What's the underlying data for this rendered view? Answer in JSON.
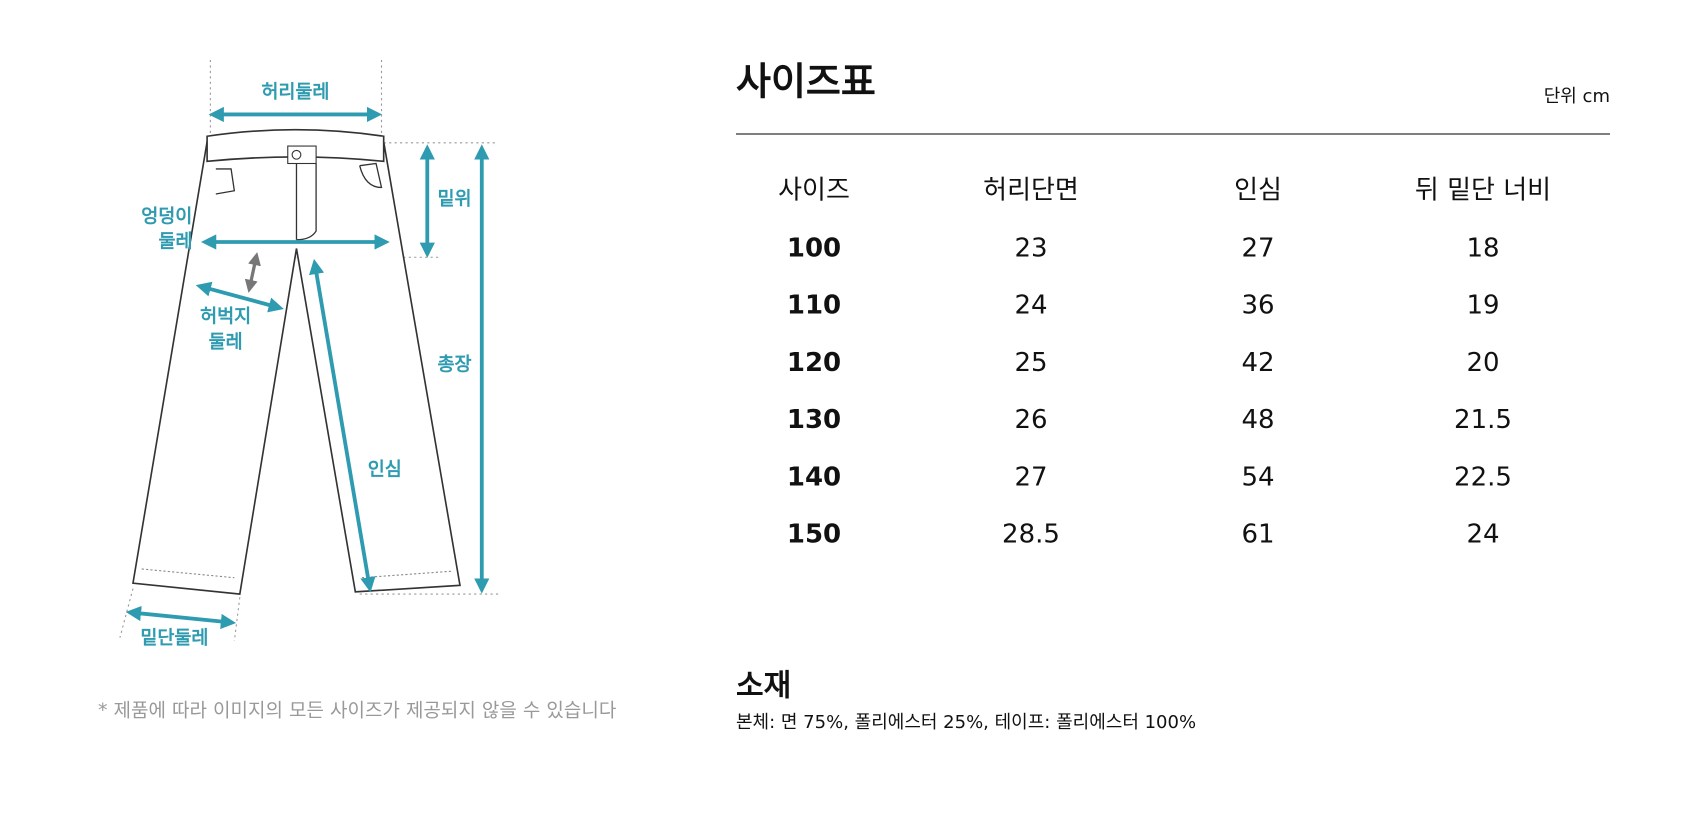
{
  "diagram": {
    "labels": {
      "waist": "허리둘레",
      "rise": "밑위",
      "hip": [
        "엉덩이",
        "둘레"
      ],
      "thigh": [
        "허벅지",
        "둘레"
      ],
      "length": "총장",
      "inseam": "인심",
      "hem": "밑단둘레"
    },
    "note": "* 제품에 따라 이미지의 모든 사이즈가 제공되지 않을 수 있습니다"
  },
  "size_table": {
    "title": "사이즈표",
    "unit": "단위 cm",
    "header": [
      "사이즈",
      "허리단면",
      "인심",
      "뒤 밑단 너비"
    ],
    "rows": [
      [
        "100",
        "23",
        "27",
        "18"
      ],
      [
        "110",
        "24",
        "36",
        "19"
      ],
      [
        "120",
        "25",
        "42",
        "20"
      ],
      [
        "130",
        "26",
        "48",
        "21.5"
      ],
      [
        "140",
        "27",
        "54",
        "22.5"
      ],
      [
        "150",
        "28.5",
        "61",
        "24"
      ]
    ]
  },
  "material": {
    "title": "소재",
    "text": "본체: 면 75%, 폴리에스터 25%, 테이프: 폴리에스터 100%"
  }
}
